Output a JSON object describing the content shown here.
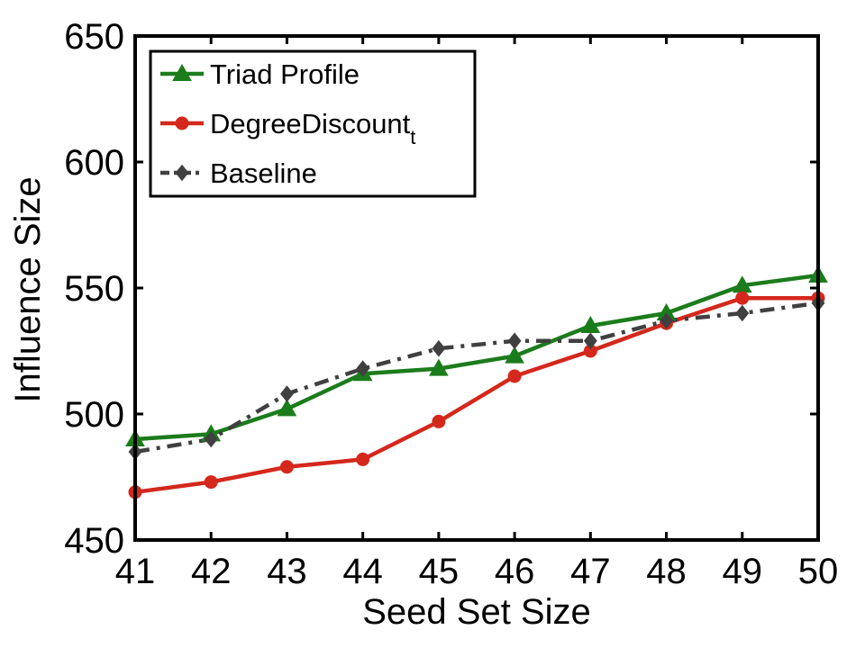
{
  "chart_data": {
    "type": "line",
    "title": "",
    "xlabel": "Seed Set Size",
    "ylabel": "Influence Size",
    "xlim": [
      41,
      50
    ],
    "ylim": [
      450,
      650
    ],
    "x": [
      41,
      42,
      43,
      44,
      45,
      46,
      47,
      48,
      49,
      50
    ],
    "xticks": [
      "41",
      "42",
      "43",
      "44",
      "45",
      "46",
      "47",
      "48",
      "49",
      "50"
    ],
    "yticks": [
      "450",
      "500",
      "550",
      "600",
      "650"
    ],
    "legend_position": "top-left",
    "grid": false,
    "series": [
      {
        "key": "triad",
        "name": "Triad Profile",
        "name_sub": "",
        "color": "#1b7c1b",
        "marker": "triangle",
        "dash": "solid",
        "values": [
          490,
          492,
          502,
          516,
          518,
          523,
          535,
          540,
          551,
          555
        ]
      },
      {
        "key": "degree",
        "name": "DegreeDiscount",
        "name_sub": "t",
        "color": "#d4281c",
        "marker": "circle",
        "dash": "solid",
        "values": [
          469,
          473,
          479,
          482,
          497,
          515,
          525,
          536,
          546,
          546
        ]
      },
      {
        "key": "baseline",
        "name": "Baseline",
        "name_sub": "",
        "color": "#404040",
        "marker": "diamond",
        "dash": "dashdot",
        "values": [
          485,
          490,
          508,
          518,
          526,
          529,
          529,
          537,
          540,
          544
        ]
      }
    ]
  }
}
